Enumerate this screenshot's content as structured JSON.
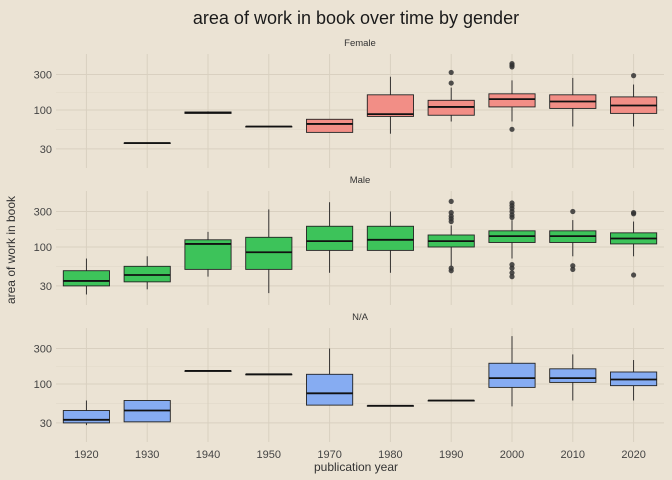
{
  "chart_data": {
    "type": "box",
    "title": "area of work in book over time by gender",
    "xlabel": "publication year",
    "ylabel": "area of work in book",
    "y_scale": "log10",
    "y_ticks": [
      30,
      100,
      300
    ],
    "ylim": [
      20,
      500
    ],
    "categories": [
      "1920",
      "1930",
      "1940",
      "1950",
      "1970",
      "1980",
      "1990",
      "2000",
      "2010",
      "2020"
    ],
    "grid": true,
    "colors": {
      "Female": "#f28e86",
      "Male": "#3dc35a",
      "N/A": "#86acf2",
      "background": "#ebe3d4",
      "grid": "#d9d0c0"
    },
    "facets": [
      {
        "name": "Female",
        "boxes": [
          {
            "x": "1930",
            "whisker_low": 36,
            "q1": 36,
            "median": 36,
            "q3": 36,
            "whisker_high": 36,
            "outliers": []
          },
          {
            "x": "1940",
            "whisker_low": 89,
            "q1": 90,
            "median": 92,
            "q3": 94,
            "whisker_high": 96,
            "outliers": []
          },
          {
            "x": "1950",
            "whisker_low": 60,
            "q1": 60,
            "median": 60,
            "q3": 60,
            "whisker_high": 60,
            "outliers": []
          },
          {
            "x": "1970",
            "whisker_low": 50,
            "q1": 50,
            "median": 65,
            "q3": 75,
            "whisker_high": 75,
            "outliers": []
          },
          {
            "x": "1980",
            "whisker_low": 48,
            "q1": 82,
            "median": 88,
            "q3": 160,
            "whisker_high": 280,
            "outliers": []
          },
          {
            "x": "1990",
            "whisker_low": 70,
            "q1": 85,
            "median": 110,
            "q3": 135,
            "whisker_high": 200,
            "outliers": [
              230,
              320
            ]
          },
          {
            "x": "2000",
            "whisker_low": 70,
            "q1": 110,
            "median": 140,
            "q3": 165,
            "whisker_high": 250,
            "outliers": [
              55,
              380,
              400,
              420
            ]
          },
          {
            "x": "2010",
            "whisker_low": 60,
            "q1": 105,
            "median": 130,
            "q3": 160,
            "whisker_high": 270,
            "outliers": []
          },
          {
            "x": "2020",
            "whisker_low": 60,
            "q1": 90,
            "median": 115,
            "q3": 150,
            "whisker_high": 220,
            "outliers": [
              290
            ]
          }
        ]
      },
      {
        "name": "Male",
        "boxes": [
          {
            "x": "1920",
            "whisker_low": 23,
            "q1": 30,
            "median": 35,
            "q3": 48,
            "whisker_high": 70,
            "outliers": []
          },
          {
            "x": "1930",
            "whisker_low": 27,
            "q1": 34,
            "median": 42,
            "q3": 55,
            "whisker_high": 75,
            "outliers": []
          },
          {
            "x": "1940",
            "whisker_low": 40,
            "q1": 50,
            "median": 110,
            "q3": 125,
            "whisker_high": 160,
            "outliers": []
          },
          {
            "x": "1950",
            "whisker_low": 24,
            "q1": 50,
            "median": 85,
            "q3": 135,
            "whisker_high": 320,
            "outliers": []
          },
          {
            "x": "1970",
            "whisker_low": 45,
            "q1": 90,
            "median": 120,
            "q3": 190,
            "whisker_high": 400,
            "outliers": []
          },
          {
            "x": "1980",
            "whisker_low": 45,
            "q1": 90,
            "median": 125,
            "q3": 190,
            "whisker_high": 300,
            "outliers": []
          },
          {
            "x": "1990",
            "whisker_low": 55,
            "q1": 100,
            "median": 120,
            "q3": 145,
            "whisker_high": 195,
            "outliers": [
              48,
              52,
              220,
              240,
              260,
              290,
              410
            ]
          },
          {
            "x": "2000",
            "whisker_low": 70,
            "q1": 115,
            "median": 140,
            "q3": 165,
            "whisker_high": 230,
            "outliers": [
              40,
              45,
              52,
              58,
              250,
              270,
              300,
              330,
              360,
              390
            ]
          },
          {
            "x": "2010",
            "whisker_low": 75,
            "q1": 115,
            "median": 140,
            "q3": 165,
            "whisker_high": 230,
            "outliers": [
              50,
              56,
              300
            ]
          },
          {
            "x": "2020",
            "whisker_low": 75,
            "q1": 110,
            "median": 130,
            "q3": 155,
            "whisker_high": 220,
            "outliers": [
              42,
              280,
              290
            ]
          }
        ]
      },
      {
        "name": "N/A",
        "boxes": [
          {
            "x": "1920",
            "whisker_low": 28,
            "q1": 30,
            "median": 33,
            "q3": 44,
            "whisker_high": 60,
            "outliers": []
          },
          {
            "x": "1930",
            "whisker_low": 31,
            "q1": 31,
            "median": 44,
            "q3": 60,
            "whisker_high": 60,
            "outliers": []
          },
          {
            "x": "1940",
            "whisker_low": 150,
            "q1": 150,
            "median": 150,
            "q3": 150,
            "whisker_high": 150,
            "outliers": []
          },
          {
            "x": "1950",
            "whisker_low": 135,
            "q1": 135,
            "median": 135,
            "q3": 135,
            "whisker_high": 135,
            "outliers": []
          },
          {
            "x": "1970",
            "whisker_low": 52,
            "q1": 52,
            "median": 75,
            "q3": 135,
            "whisker_high": 300,
            "outliers": []
          },
          {
            "x": "1980",
            "whisker_low": 51,
            "q1": 51,
            "median": 51,
            "q3": 51,
            "whisker_high": 51,
            "outliers": []
          },
          {
            "x": "1990",
            "whisker_low": 60,
            "q1": 60,
            "median": 60,
            "q3": 60,
            "whisker_high": 60,
            "outliers": []
          },
          {
            "x": "2000",
            "whisker_low": 50,
            "q1": 90,
            "median": 120,
            "q3": 190,
            "whisker_high": 440,
            "outliers": []
          },
          {
            "x": "2010",
            "whisker_low": 60,
            "q1": 105,
            "median": 120,
            "q3": 160,
            "whisker_high": 250,
            "outliers": []
          },
          {
            "x": "2020",
            "whisker_low": 60,
            "q1": 95,
            "median": 115,
            "q3": 145,
            "whisker_high": 210,
            "outliers": []
          }
        ]
      }
    ]
  }
}
